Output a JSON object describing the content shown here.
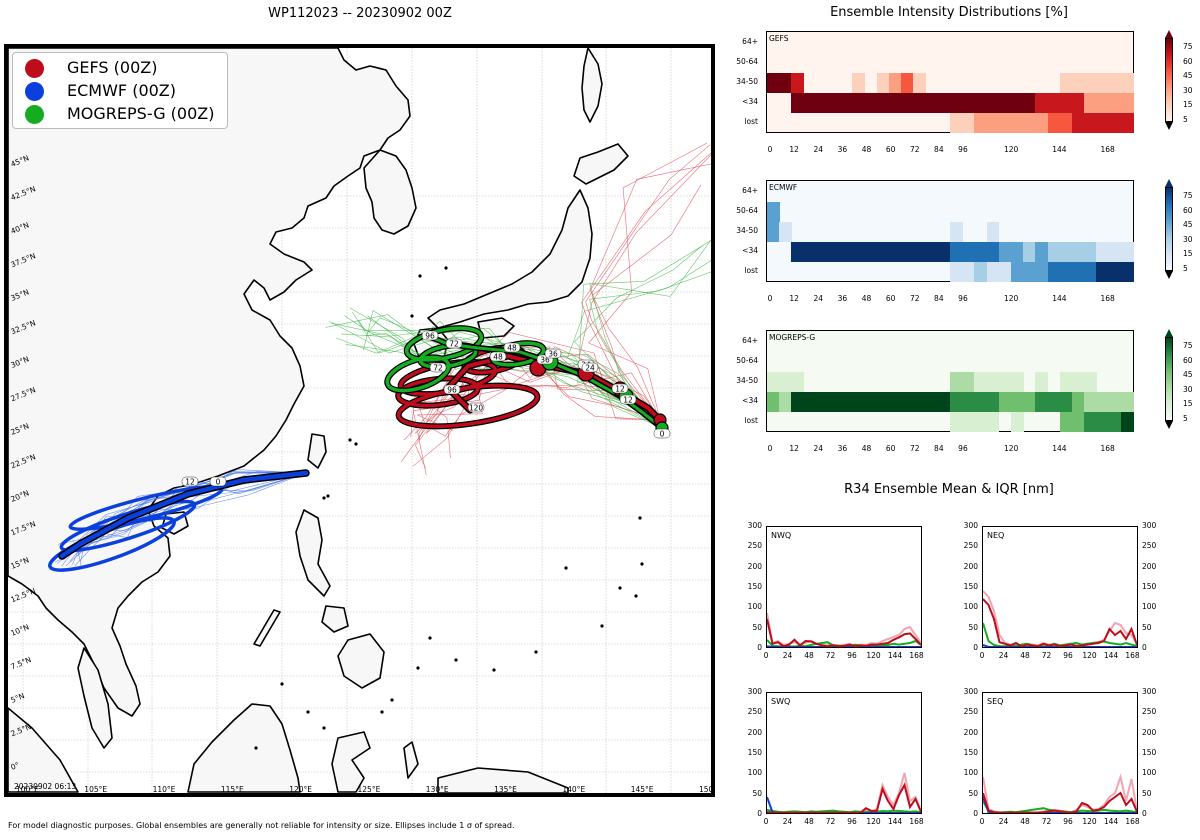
{
  "map": {
    "title": "WP112023 -- 20230902 00Z",
    "legend": [
      {
        "label": "GEFS (00Z)",
        "color": "#bd0d1d"
      },
      {
        "label": "ECMWF (00Z)",
        "color": "#0b40dc"
      },
      {
        "label": "MOGREPS-G (00Z)",
        "color": "#16ac20"
      }
    ],
    "lat_labels": [
      "45°N",
      "42.5°N",
      "40°N",
      "37.5°N",
      "35°N",
      "32.5°N",
      "30°N",
      "27.5°N",
      "25°N",
      "22.5°N",
      "20°N",
      "17.5°N",
      "15°N",
      "12.5°N",
      "10°N",
      "7.5°N",
      "5°N",
      "2.5°N",
      "0°"
    ],
    "lon_labels": [
      "100°E",
      "105°E",
      "110°E",
      "115°E",
      "120°E",
      "125°E",
      "130°E",
      "135°E",
      "140°E",
      "145°E",
      "150°E"
    ],
    "track_labels": {
      "gefs": [
        "12",
        "24",
        "36",
        "48",
        "72",
        "96",
        "120"
      ],
      "ecmwf": [
        "0",
        "12"
      ],
      "mogreps": [
        "0",
        "12",
        "24",
        "36",
        "48",
        "72",
        "96"
      ]
    },
    "stamp": "20230902 06:13",
    "footer": "For model diagnostic purposes. Global ensembles are generally not reliable for intensity or size. Ellipses include 1 σ of spread."
  },
  "intensity": {
    "title": "Ensemble Intensity Distributions [%]",
    "ylabels": [
      "64+",
      "50-64",
      "34-50",
      "<34",
      "lost"
    ],
    "xlabels": [
      "0",
      "12",
      "24",
      "36",
      "48",
      "60",
      "72",
      "84",
      "96",
      "120",
      "144",
      "168"
    ],
    "colorbar_labels": [
      "75",
      "60",
      "45",
      "30",
      "15",
      "5"
    ],
    "panels": [
      {
        "name": "GEFS",
        "scheme": "reds"
      },
      {
        "name": "ECMWF",
        "scheme": "blues"
      },
      {
        "name": "MOGREPS-G",
        "scheme": "greens"
      }
    ]
  },
  "r34": {
    "title": "R34 Ensemble Mean & IQR [nm]",
    "panels": [
      {
        "name": "NWQ"
      },
      {
        "name": "NEQ"
      },
      {
        "name": "SWQ"
      },
      {
        "name": "SEQ"
      }
    ],
    "ylabels": [
      "300",
      "250",
      "200",
      "150",
      "100",
      "50",
      "0"
    ],
    "xlabels": [
      "0",
      "24",
      "48",
      "72",
      "96",
      "120",
      "144",
      "168"
    ]
  }
}
